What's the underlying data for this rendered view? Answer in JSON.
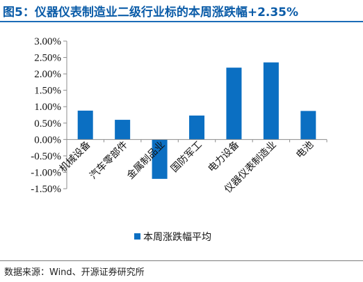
{
  "chart_data": {
    "type": "bar",
    "title": "图5：仪器仪表制造业二级行业标的本周涨跌幅+2.35%",
    "categories": [
      "机械设备",
      "汽车零部件",
      "金属制品业",
      "国防军工",
      "电力设备",
      "仪器仪表制造业",
      "电池"
    ],
    "series": [
      {
        "name": "本周涨跌幅平均",
        "values": [
          0.88,
          0.6,
          -1.2,
          0.73,
          2.19,
          2.35,
          0.87
        ],
        "color": "#0b6fc2"
      }
    ],
    "ylim": [
      -1.5,
      3.0
    ],
    "yticks": [
      "3.00%",
      "2.50%",
      "2.00%",
      "1.50%",
      "1.00%",
      "0.50%",
      "0.00%",
      "-0.50%",
      "-1.00%",
      "-1.50%"
    ],
    "ytick_values": [
      3.0,
      2.5,
      2.0,
      1.5,
      1.0,
      0.5,
      0.0,
      -0.5,
      -1.0,
      -1.5
    ],
    "grid": false,
    "legend": "bottom-center"
  },
  "source": "数据来源：Wind、开源证券研究所"
}
